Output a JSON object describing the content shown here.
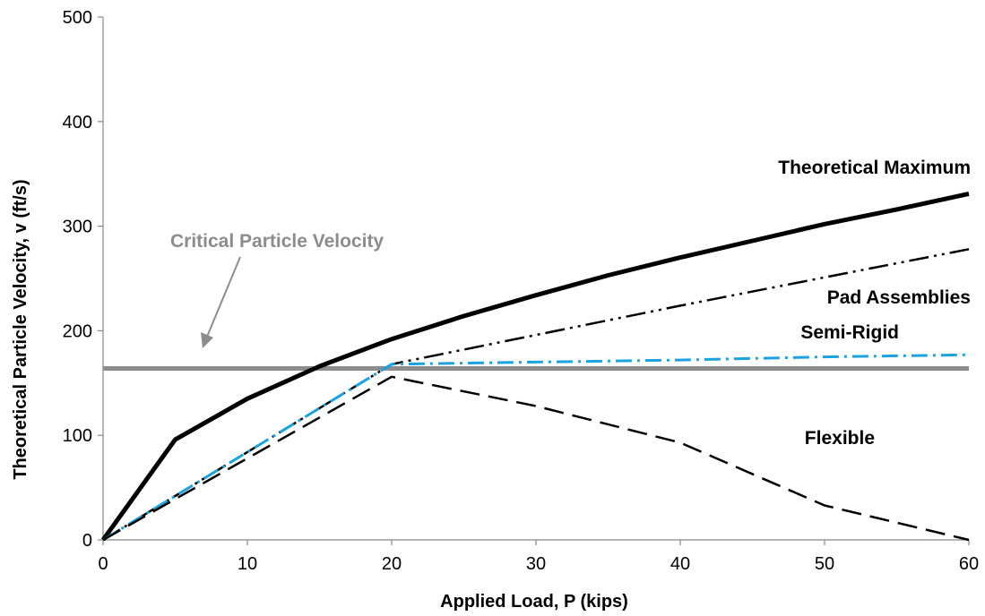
{
  "chart_data": {
    "type": "line",
    "xlabel": "Applied Load, P (kips)",
    "ylabel": "Theoretical Particle Velocity, v (ft/s)",
    "xlim": [
      0,
      60
    ],
    "ylim": [
      0,
      500
    ],
    "xticks": [
      0,
      10,
      20,
      30,
      40,
      50,
      60
    ],
    "yticks": [
      0,
      100,
      200,
      300,
      400,
      500
    ],
    "grid": false,
    "series": [
      {
        "name": "Theoretical Maximum",
        "style": "solid-thick",
        "color": "#000000",
        "x": [
          0,
          5,
          10,
          15,
          20,
          25,
          30,
          35,
          40,
          45,
          50,
          55,
          60
        ],
        "y": [
          0,
          96,
          135,
          166,
          192,
          214,
          234,
          253,
          270,
          286,
          302,
          316,
          331
        ]
      },
      {
        "name": "Pad Assemblies",
        "style": "dash-dot-dot",
        "color": "#000000",
        "x": [
          0,
          10,
          20,
          30,
          40,
          50,
          60
        ],
        "y": [
          0,
          84,
          168,
          196,
          224,
          251,
          278
        ]
      },
      {
        "name": "Semi-Rigid",
        "style": "dash-dot",
        "color": "#1aa3e0",
        "x": [
          0,
          10,
          20,
          30,
          40,
          50,
          60
        ],
        "y": [
          0,
          84,
          168,
          170,
          172,
          175,
          177
        ]
      },
      {
        "name": "Flexible",
        "style": "long-dash",
        "color": "#000000",
        "x": [
          0,
          10,
          20,
          30,
          40,
          50,
          60
        ],
        "y": [
          0,
          78,
          156,
          128,
          93,
          33,
          0
        ]
      }
    ],
    "reference_line": {
      "name": "Critical Particle Velocity",
      "y": 164,
      "color": "#8c8c8c"
    },
    "annotations": [
      {
        "text": "Theoretical Maximum",
        "series": 0
      },
      {
        "text": "Pad Assemblies",
        "series": 1
      },
      {
        "text": "Semi-Rigid",
        "series": 2
      },
      {
        "text": "Flexible",
        "series": 3
      },
      {
        "text": "Critical Particle Velocity",
        "series": "reference"
      }
    ]
  }
}
